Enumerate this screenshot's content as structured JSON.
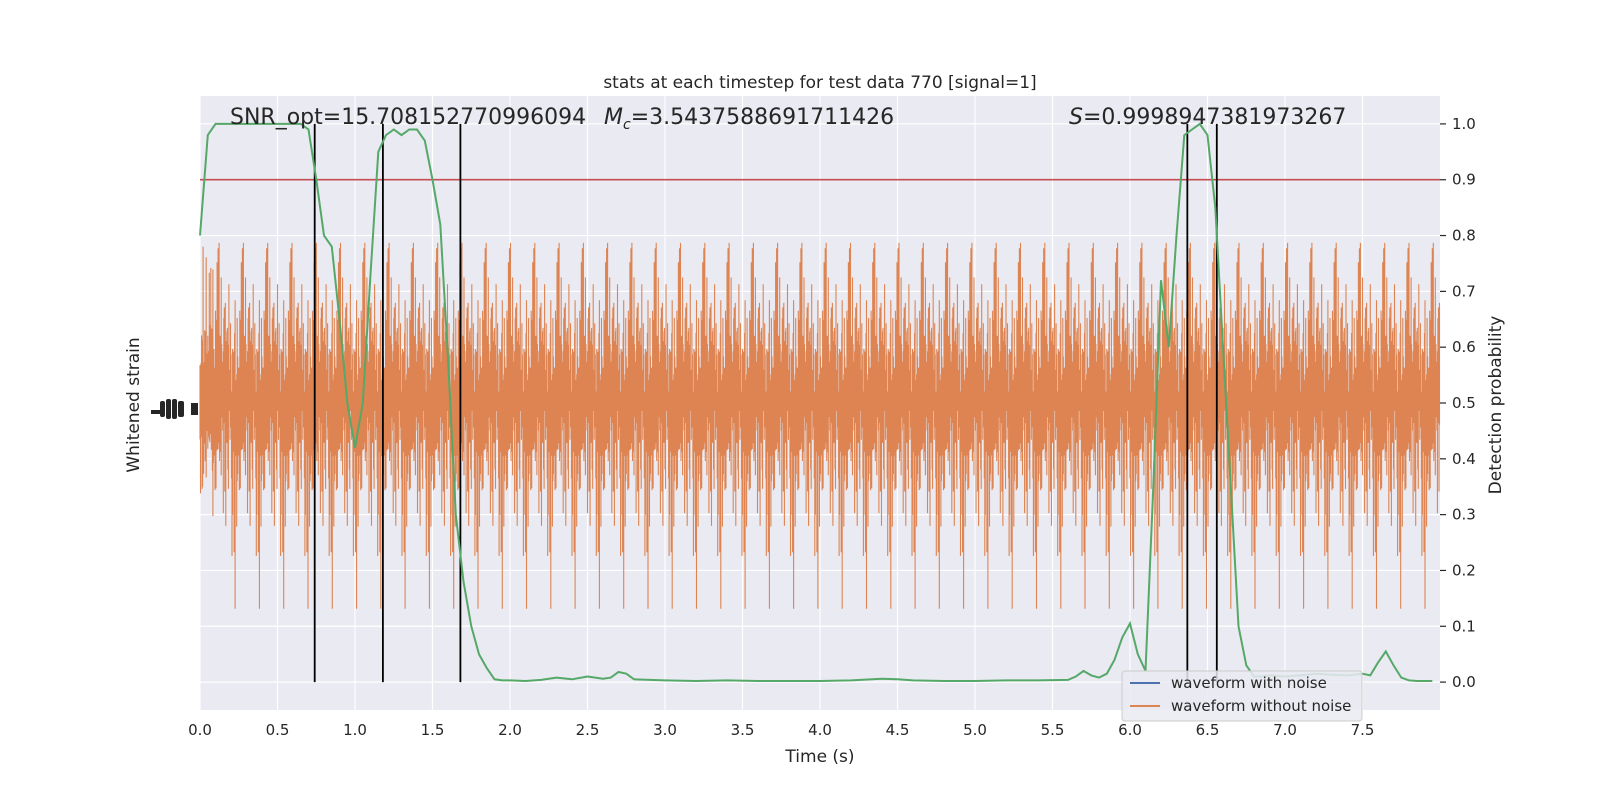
{
  "chart_data": {
    "type": "line",
    "title": "stats at each timestep for test data 770 [signal=1]",
    "xlabel": "Time (s)",
    "ylabel_left": "Whitened strain",
    "ylabel_right": "Detection probability",
    "xlim": [
      0.0,
      8.0
    ],
    "ylim_right": [
      -0.05,
      1.05
    ],
    "x_ticks": [
      "0.0",
      "0.5",
      "1.0",
      "1.5",
      "2.0",
      "2.5",
      "3.0",
      "3.5",
      "4.0",
      "4.5",
      "5.0",
      "5.5",
      "6.0",
      "6.5",
      "7.0",
      "7.5"
    ],
    "y_ticks_right": [
      "0.0",
      "0.1",
      "0.2",
      "0.3",
      "0.4",
      "0.5",
      "0.6",
      "0.7",
      "0.8",
      "0.9",
      "1.0"
    ],
    "grid": true,
    "legend_position": "lower-right",
    "legend": [
      "waveform with noise",
      "waveform without noise"
    ],
    "annotations": {
      "snr_label": "SNR_opt=15.708152770996094",
      "mc_label": "=3.5437588691711426",
      "mc_symbol": "M",
      "mc_subscript": "c",
      "s_label": "=0.9998947381973267",
      "s_symbol": "S"
    },
    "threshold": 0.9,
    "vlines": [
      0.74,
      1.18,
      1.68,
      6.37,
      6.56
    ],
    "series": [
      {
        "name": "waveform with noise",
        "color": "#4c72b0",
        "values_description_x": [],
        "y": []
      },
      {
        "name": "waveform without noise",
        "color": "#dd8452",
        "x": [
          0.0,
          8.0
        ],
        "y": [
          0.5,
          0.5
        ]
      },
      {
        "color": "#55a868",
        "x": [
          0.0,
          0.05,
          0.1,
          0.15,
          0.2,
          0.3,
          0.4,
          0.5,
          0.55,
          0.6,
          0.65,
          0.7,
          0.75,
          0.8,
          0.85,
          0.9,
          0.95,
          1.0,
          1.05,
          1.1,
          1.15,
          1.2,
          1.25,
          1.3,
          1.35,
          1.4,
          1.45,
          1.5,
          1.55,
          1.6,
          1.65,
          1.7,
          1.75,
          1.8,
          1.85,
          1.9,
          1.95,
          2.0,
          2.1,
          2.2,
          2.3,
          2.4,
          2.5,
          2.6,
          2.65,
          2.7,
          2.75,
          2.8,
          3.0,
          3.2,
          3.4,
          3.6,
          3.8,
          4.0,
          4.2,
          4.4,
          4.5,
          4.6,
          4.8,
          5.0,
          5.2,
          5.4,
          5.6,
          5.65,
          5.7,
          5.75,
          5.8,
          5.85,
          5.9,
          5.95,
          6.0,
          6.05,
          6.1,
          6.15,
          6.2,
          6.25,
          6.3,
          6.35,
          6.4,
          6.45,
          6.5,
          6.55,
          6.6,
          6.65,
          6.7,
          6.75,
          6.8,
          6.85,
          6.9,
          7.0,
          7.1,
          7.2,
          7.3,
          7.4,
          7.5,
          7.55,
          7.6,
          7.65,
          7.7,
          7.75,
          7.8,
          7.85,
          7.9,
          7.95
        ],
        "y": [
          0.8,
          0.98,
          1.0,
          1.0,
          1.0,
          1.0,
          1.0,
          1.0,
          1.0,
          1.0,
          1.0,
          0.99,
          0.9,
          0.8,
          0.78,
          0.65,
          0.5,
          0.42,
          0.5,
          0.73,
          0.95,
          0.98,
          0.99,
          0.98,
          0.99,
          0.99,
          0.97,
          0.9,
          0.82,
          0.58,
          0.3,
          0.18,
          0.1,
          0.05,
          0.025,
          0.005,
          0.003,
          0.003,
          0.002,
          0.004,
          0.008,
          0.005,
          0.01,
          0.006,
          0.008,
          0.018,
          0.015,
          0.005,
          0.003,
          0.002,
          0.003,
          0.002,
          0.002,
          0.002,
          0.003,
          0.006,
          0.005,
          0.003,
          0.002,
          0.002,
          0.003,
          0.003,
          0.004,
          0.01,
          0.02,
          0.012,
          0.008,
          0.015,
          0.04,
          0.08,
          0.105,
          0.05,
          0.02,
          0.35,
          0.72,
          0.6,
          0.8,
          0.98,
          0.99,
          1.0,
          0.98,
          0.85,
          0.6,
          0.35,
          0.1,
          0.03,
          0.01,
          0.01,
          0.012,
          0.01,
          0.012,
          0.015,
          0.013,
          0.012,
          0.015,
          0.012,
          0.035,
          0.055,
          0.03,
          0.008,
          0.003,
          0.002,
          0.002,
          0.002
        ]
      }
    ]
  }
}
